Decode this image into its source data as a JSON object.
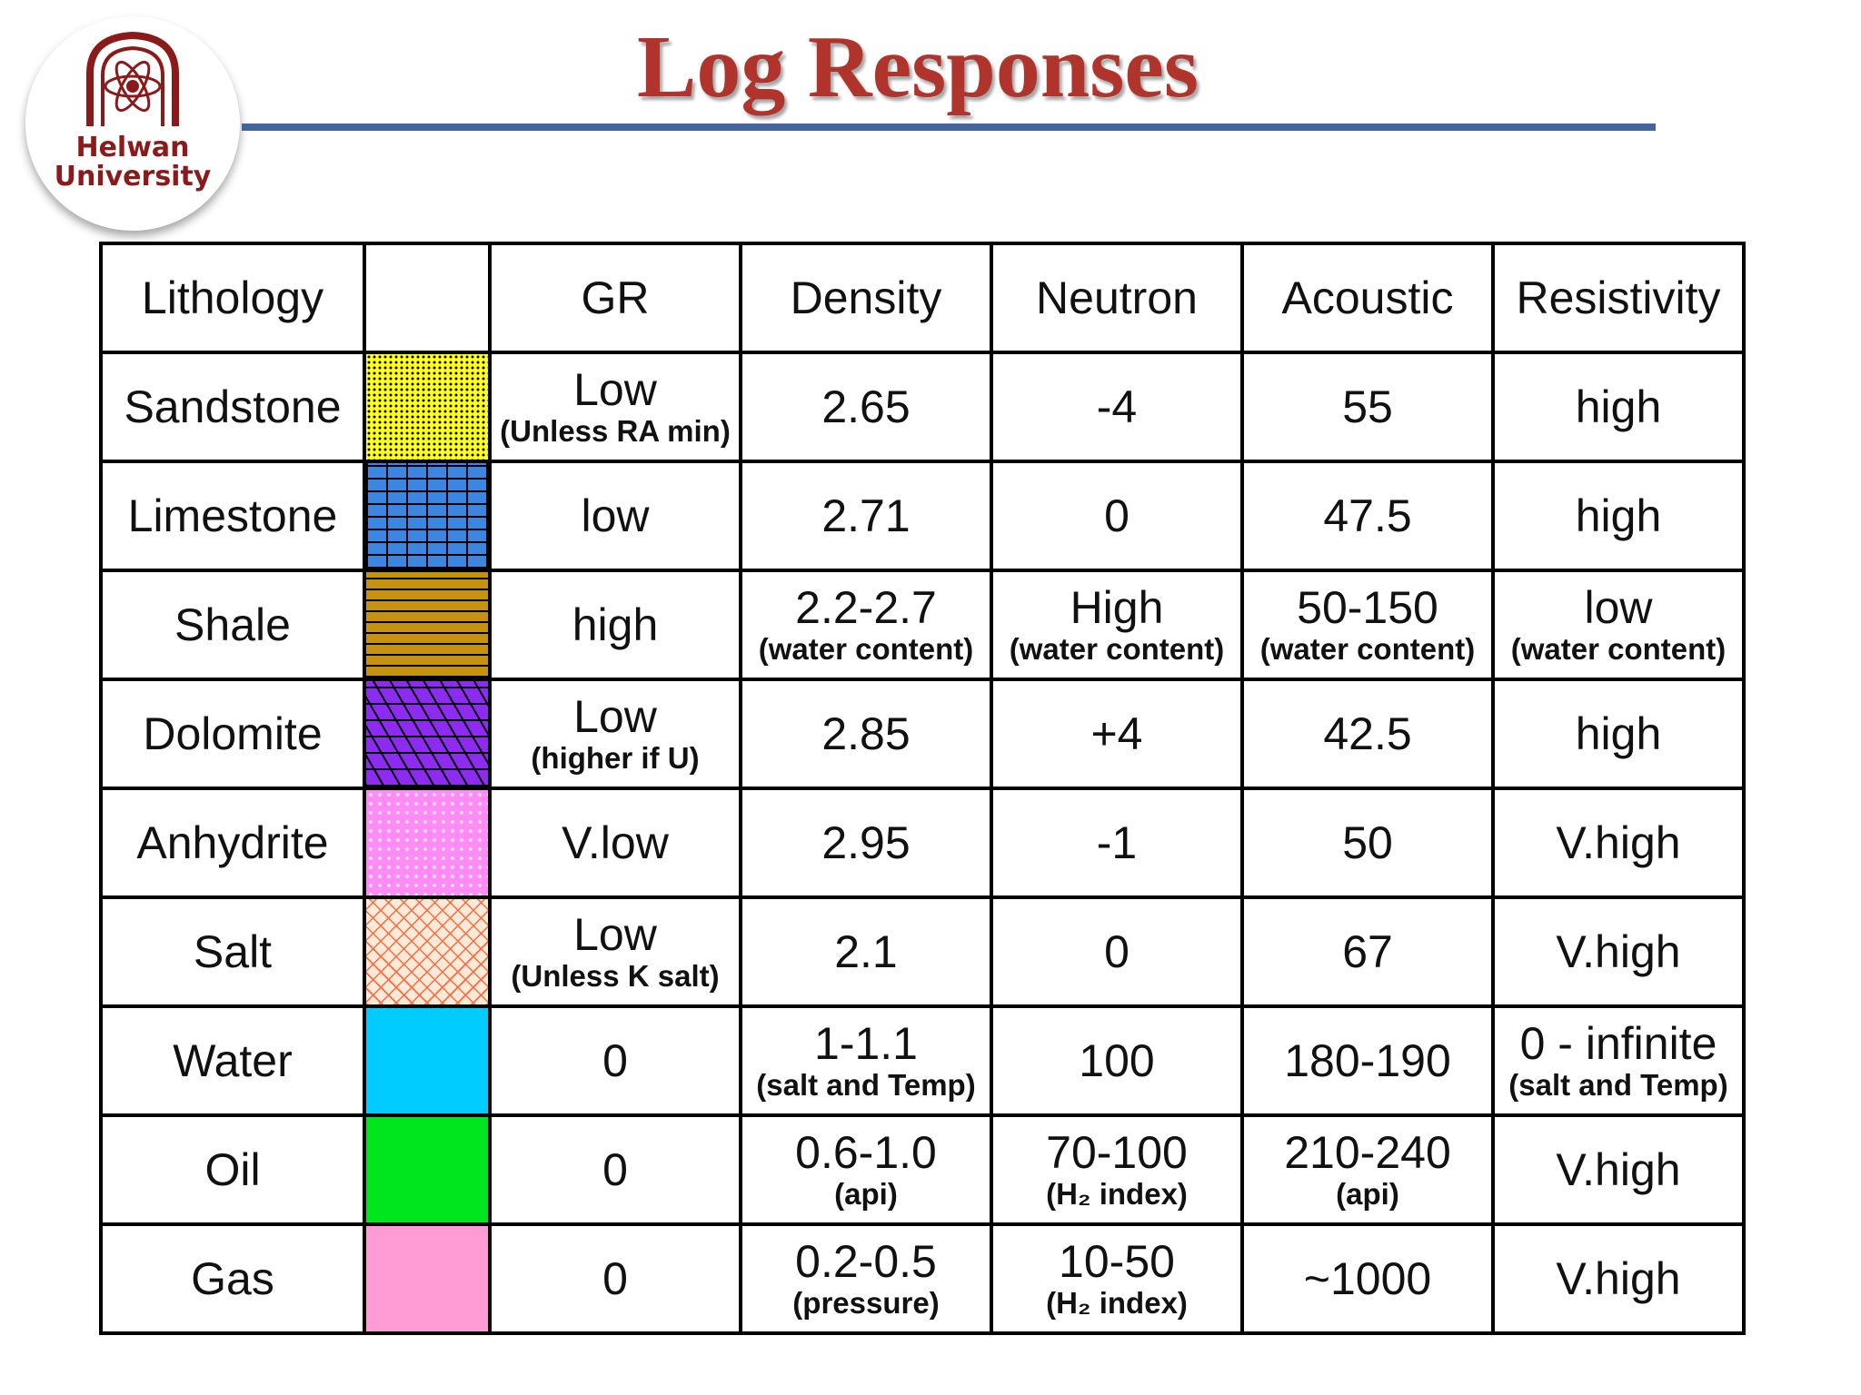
{
  "slide": {
    "title": "Log Responses",
    "logo": {
      "line1": "Helwan",
      "line2": "University"
    }
  },
  "colors": {
    "title": "#b0342c",
    "rule": "#43649c",
    "logo_text": "#8b1a1a"
  },
  "table": {
    "headers": [
      "Lithology",
      "",
      "GR",
      "Density",
      "Neutron",
      "Acoustic",
      "Resistivity"
    ],
    "rows": [
      {
        "lithology": "Sandstone",
        "pattern": "yellow-dotted",
        "gr": {
          "main": "Low",
          "sub": "(Unless RA min)"
        },
        "density": {
          "main": "2.65",
          "sub": ""
        },
        "neutron": {
          "main": "-4",
          "sub": ""
        },
        "acoustic": {
          "main": "55",
          "sub": ""
        },
        "resistivity": {
          "main": "high",
          "sub": ""
        }
      },
      {
        "lithology": "Limestone",
        "pattern": "blue-brick",
        "gr": {
          "main": "low",
          "sub": ""
        },
        "density": {
          "main": "2.71",
          "sub": ""
        },
        "neutron": {
          "main": "0",
          "sub": ""
        },
        "acoustic": {
          "main": "47.5",
          "sub": ""
        },
        "resistivity": {
          "main": "high",
          "sub": ""
        }
      },
      {
        "lithology": "Shale",
        "pattern": "brown-dashed",
        "gr": {
          "main": "high",
          "sub": ""
        },
        "density": {
          "main": "2.2-2.7",
          "sub": "(water content)"
        },
        "neutron": {
          "main": "High",
          "sub": "(water content)"
        },
        "acoustic": {
          "main": "50-150",
          "sub": "(water content)"
        },
        "resistivity": {
          "main": "low",
          "sub": "(water content)"
        }
      },
      {
        "lithology": "Dolomite",
        "pattern": "purple-rhomb",
        "gr": {
          "main": "Low",
          "sub": "(higher if U)"
        },
        "density": {
          "main": "2.85",
          "sub": ""
        },
        "neutron": {
          "main": "+4",
          "sub": ""
        },
        "acoustic": {
          "main": "42.5",
          "sub": ""
        },
        "resistivity": {
          "main": "high",
          "sub": ""
        }
      },
      {
        "lithology": "Anhydrite",
        "pattern": "pink-speckled",
        "gr": {
          "main": "V.low",
          "sub": ""
        },
        "density": {
          "main": "2.95",
          "sub": ""
        },
        "neutron": {
          "main": "-1",
          "sub": ""
        },
        "acoustic": {
          "main": "50",
          "sub": ""
        },
        "resistivity": {
          "main": "V.high",
          "sub": ""
        }
      },
      {
        "lithology": "Salt",
        "pattern": "orange-crosshatch",
        "gr": {
          "main": "Low",
          "sub": "(Unless K salt)"
        },
        "density": {
          "main": "2.1",
          "sub": ""
        },
        "neutron": {
          "main": "0",
          "sub": ""
        },
        "acoustic": {
          "main": "67",
          "sub": ""
        },
        "resistivity": {
          "main": "V.high",
          "sub": ""
        }
      },
      {
        "lithology": "Water",
        "pattern": "cyan-solid",
        "gr": {
          "main": "0",
          "sub": ""
        },
        "density": {
          "main": "1-1.1",
          "sub": "(salt and Temp)"
        },
        "neutron": {
          "main": "100",
          "sub": ""
        },
        "acoustic": {
          "main": "180-190",
          "sub": ""
        },
        "resistivity": {
          "main": "0 - infinite",
          "sub": "(salt and Temp)"
        }
      },
      {
        "lithology": "Oil",
        "pattern": "green-solid",
        "gr": {
          "main": "0",
          "sub": ""
        },
        "density": {
          "main": "0.6-1.0",
          "sub": "(api)"
        },
        "neutron": {
          "main": "70-100",
          "sub": "(H₂ index)"
        },
        "acoustic": {
          "main": "210-240",
          "sub": "(api)"
        },
        "resistivity": {
          "main": "V.high",
          "sub": ""
        }
      },
      {
        "lithology": "Gas",
        "pattern": "pink-solid",
        "gr": {
          "main": "0",
          "sub": ""
        },
        "density": {
          "main": "0.2-0.5",
          "sub": "(pressure)"
        },
        "neutron": {
          "main": "10-50",
          "sub": "(H₂ index)"
        },
        "acoustic": {
          "main": "~1000",
          "sub": ""
        },
        "resistivity": {
          "main": "V.high",
          "sub": ""
        }
      }
    ]
  }
}
